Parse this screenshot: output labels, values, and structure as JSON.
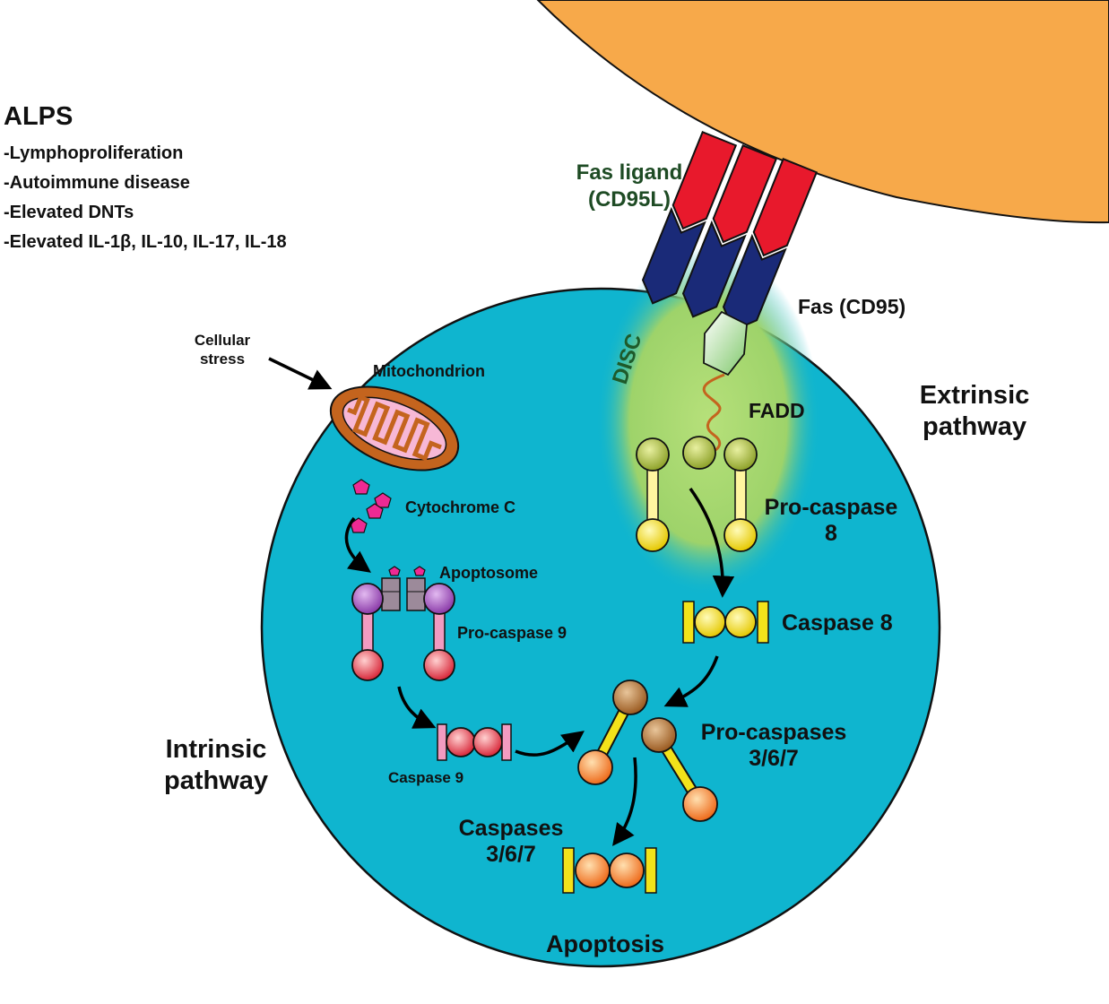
{
  "alps": {
    "title": "ALPS",
    "items": [
      "-Lymphoproliferation",
      "-Autoimmune disease",
      "-Elevated DNTs",
      "-Elevated IL-1β, IL-10, IL-17, IL-18"
    ]
  },
  "labels": {
    "fas_ligand_1": "Fas ligand",
    "fas_ligand_2": "(CD95L)",
    "fas": "Fas (CD95)",
    "disc": "DISC",
    "fadd": "FADD",
    "extrinsic_1": "Extrinsic",
    "extrinsic_2": "pathway",
    "pro_caspase_8_1": "Pro-caspase",
    "pro_caspase_8_2": "8",
    "caspase_8": "Caspase 8",
    "cellular_stress_1": "Cellular",
    "cellular_stress_2": "stress",
    "mitochondrion": "Mitochondrion",
    "cytochrome_c": "Cytochrome C",
    "apoptosome": "Apoptosome",
    "pro_caspase_9": "Pro-caspase 9",
    "caspase_9": "Caspase 9",
    "intrinsic_1": "Intrinsic",
    "intrinsic_2": "pathway",
    "pro_caspases_1": "Pro-caspases",
    "pro_caspases_2": "3/6/7",
    "caspases_1": "Caspases",
    "caspases_2": "3/6/7",
    "apoptosis": "Apoptosis"
  },
  "colors": {
    "cell": "#0fb5cf",
    "ligand_cell": "#f7a94a",
    "fas_ligand": "#e8192c",
    "fas_receptor": "#1a2a78",
    "disc_glow": "#a6d96a",
    "mitochondrion": "#c4641e",
    "pink": "#f29bc1",
    "yellow": "#f3e21a",
    "orange": "#f5872a"
  }
}
